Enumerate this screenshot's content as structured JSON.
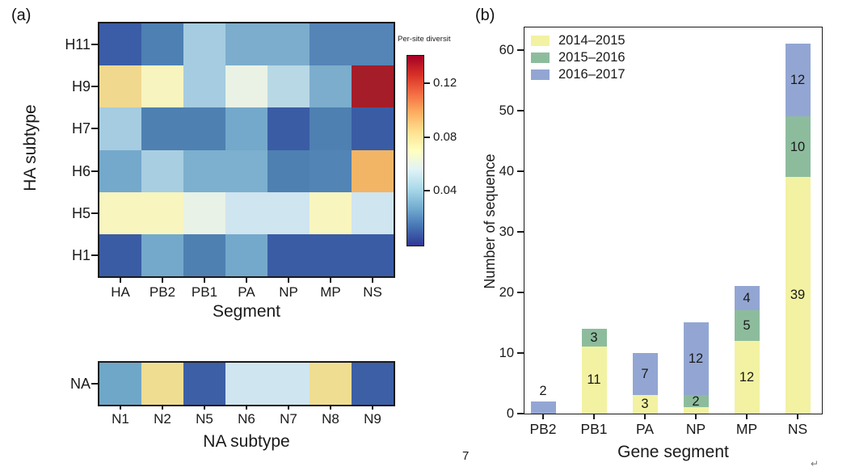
{
  "figure": {
    "panel_a_label": "(a)",
    "panel_b_label": "(b)"
  },
  "page": {
    "number": "7",
    "paragraph_mark": "↵"
  },
  "chart_data": [
    {
      "type": "heatmap",
      "name": "per-site-diversity-by-ha-subtype",
      "ylabel": "HA subtype",
      "xlabel": "Segment",
      "rows": [
        "H11",
        "H9",
        "H7",
        "H6",
        "H5",
        "H1"
      ],
      "columns": [
        "HA",
        "PB2",
        "PB1",
        "PA",
        "NP",
        "MP",
        "NS"
      ],
      "cell_colors": [
        [
          "#3b5ca6",
          "#4e80b4",
          "#a5cce0",
          "#7cadcd",
          "#7cadcd",
          "#5584b7",
          "#5584b7"
        ],
        [
          "#f0d98f",
          "#f8f4c0",
          "#a5cce0",
          "#e9f2e4",
          "#b8d8e6",
          "#7cadcd",
          "#a41d28"
        ],
        [
          "#a5cce0",
          "#4e80b2",
          "#4e80b2",
          "#74a9cc",
          "#3a5ca5",
          "#4e80b2",
          "#3a5ca5"
        ],
        [
          "#74a9cc",
          "#a8cee1",
          "#7cb0ce",
          "#7cb0ce",
          "#4e80b2",
          "#5384b6",
          "#f2b566"
        ],
        [
          "#f8f5bf",
          "#f8f5bf",
          "#e9f2e6",
          "#cfe5ef",
          "#cfe5ef",
          "#f8f5bf",
          "#cfe5ef"
        ],
        [
          "#3a5ca5",
          "#74a9cc",
          "#4e80b2",
          "#74a9cc",
          "#3a5ca5",
          "#3a5ca5",
          "#3a5ca5"
        ]
      ],
      "cell_values_approx": [
        [
          0.018,
          0.025,
          0.038,
          0.032,
          0.032,
          0.027,
          0.027
        ],
        [
          0.075,
          0.061,
          0.038,
          0.051,
          0.041,
          0.032,
          0.134
        ],
        [
          0.038,
          0.025,
          0.025,
          0.03,
          0.018,
          0.025,
          0.018
        ],
        [
          0.03,
          0.038,
          0.032,
          0.032,
          0.025,
          0.027,
          0.09
        ],
        [
          0.061,
          0.061,
          0.051,
          0.045,
          0.045,
          0.061,
          0.045
        ],
        [
          0.018,
          0.03,
          0.025,
          0.03,
          0.018,
          0.018,
          0.018
        ]
      ],
      "colorbar": {
        "title": "Per-site diversit",
        "ticks": [
          "0.12",
          "0.08",
          "0.04"
        ],
        "tick_values": [
          0.12,
          0.08,
          0.04
        ],
        "range": [
          0,
          0.14
        ],
        "gradient_bottom_to_top": [
          "#313695",
          "#4575b4",
          "#74add1",
          "#abd9e9",
          "#e0f3f8",
          "#ffffbf",
          "#fee090",
          "#fdae61",
          "#f46d43",
          "#d73027",
          "#a50026"
        ]
      }
    },
    {
      "type": "heatmap",
      "name": "per-site-diversity-by-na-subtype",
      "ylabel": "",
      "xlabel": "NA subtype",
      "rows": [
        "NA"
      ],
      "columns": [
        "N1",
        "N2",
        "N5",
        "N6",
        "N7",
        "N8",
        "N9"
      ],
      "cell_colors": [
        [
          "#6fa7c8",
          "#efdd92",
          "#3c5fa6",
          "#cfe5ef",
          "#cfe5ef",
          "#efdd92",
          "#3c5fa6"
        ]
      ],
      "cell_values_approx": [
        [
          0.034,
          0.073,
          0.019,
          0.045,
          0.045,
          0.073,
          0.019
        ]
      ]
    },
    {
      "type": "bar",
      "stacked": true,
      "name": "sequence-counts-by-gene-segment",
      "ylabel": "Number of sequence",
      "xlabel": "Gene segment",
      "categories": [
        "PB2",
        "PB1",
        "PA",
        "NP",
        "MP",
        "NS"
      ],
      "series": [
        {
          "name": "2014–2015",
          "color": "#f3f2a2",
          "values": [
            0,
            11,
            3,
            1,
            12,
            39
          ]
        },
        {
          "name": "2015–2016",
          "color": "#8dbc9d",
          "values": [
            0,
            3,
            0,
            2,
            5,
            10
          ]
        },
        {
          "name": "2016–2017",
          "color": "#93a6d3",
          "values": [
            2,
            0,
            7,
            12,
            4,
            12
          ]
        }
      ],
      "totals": [
        2,
        14,
        10,
        15,
        21,
        61
      ],
      "y_ticks": [
        0,
        10,
        20,
        30,
        40,
        50,
        60
      ],
      "ylim": [
        0,
        64
      ],
      "legend_position": "top-left",
      "grid": false,
      "value_labels": [
        {
          "category": "PB2",
          "text": "2",
          "placement": "above"
        },
        {
          "category": "PB1",
          "text": "11",
          "y_units": 5.5
        },
        {
          "category": "PB1",
          "text": "3",
          "y_units": 12.5
        },
        {
          "category": "PA",
          "text": "3",
          "y_units": 1.5
        },
        {
          "category": "PA",
          "text": "7",
          "y_units": 6.5
        },
        {
          "category": "NP",
          "text": "2",
          "y_units": 2
        },
        {
          "category": "NP",
          "text": "12",
          "y_units": 9
        },
        {
          "category": "MP",
          "text": "12",
          "y_units": 6
        },
        {
          "category": "MP",
          "text": "5",
          "y_units": 14.5
        },
        {
          "category": "MP",
          "text": "4",
          "y_units": 19
        },
        {
          "category": "NS",
          "text": "39",
          "y_units": 19.5
        },
        {
          "category": "NS",
          "text": "10",
          "y_units": 44
        },
        {
          "category": "NS",
          "text": "12",
          "y_units": 55
        }
      ]
    }
  ]
}
